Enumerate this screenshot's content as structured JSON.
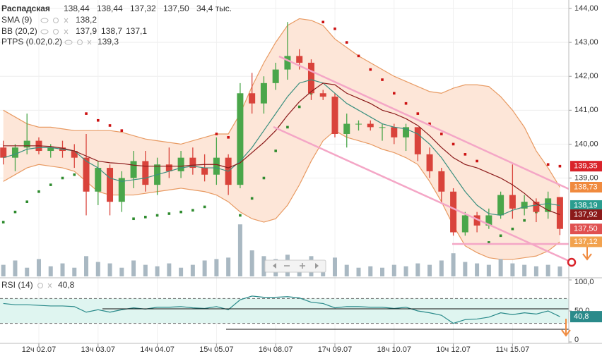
{
  "chart_data": {
    "type": "candlestick",
    "legend": {
      "symbol": "Распадская",
      "ohlc": [
        "138,44",
        "138,44",
        "137,32",
        "137,50"
      ],
      "volume": "34,4 тыс.",
      "indicators": [
        {
          "name": "SMA (9)",
          "values": [
            "138,2"
          ]
        },
        {
          "name": "BB (20,2)",
          "values": [
            "137,9",
            "138,7",
            "137,1"
          ]
        },
        {
          "name": "PTPS (0.02,0.2)",
          "values": [
            "139,3"
          ]
        }
      ]
    },
    "categories": [
      null,
      null,
      null,
      "12ч 02.07",
      null,
      null,
      null,
      null,
      "13ч 03.07",
      null,
      null,
      null,
      null,
      "14ч 04.07",
      null,
      null,
      null,
      null,
      "15ч 05.07",
      null,
      null,
      null,
      null,
      "16ч 08.07",
      null,
      null,
      null,
      null,
      "17ч 09.07",
      null,
      null,
      null,
      null,
      "18ч 10.07",
      null,
      null,
      null,
      null,
      "10ч 12.07",
      null,
      null,
      null,
      null,
      "11ч 15.07",
      null,
      null,
      null,
      null
    ],
    "open": [
      139.9,
      139.6,
      139.9,
      140.1,
      139.8,
      139.9,
      139.8,
      139.6,
      138.6,
      139.3,
      138.3,
      139.0,
      139.5,
      138.8,
      139.4,
      139.2,
      139.6,
      139.3,
      139.1,
      139.6,
      138.8,
      141.5,
      141.2,
      141.8,
      142.2,
      142.6,
      142.4,
      141.5,
      141.4,
      140.3,
      140.6,
      140.6,
      140.5,
      140.5,
      140.2,
      140.5,
      139.7,
      139.2,
      138.6,
      137.4,
      137.9,
      137.6,
      137.9,
      138.5,
      138.1,
      138.3,
      138.0,
      138.44
    ],
    "high": [
      140.1,
      140.0,
      140.9,
      140.2,
      140.0,
      140.1,
      140.0,
      140.3,
      139.5,
      139.4,
      139.2,
      139.8,
      139.8,
      139.6,
      139.9,
      139.8,
      139.9,
      139.7,
      140.2,
      139.7,
      141.8,
      142.1,
      142.0,
      142.4,
      143.6,
      142.8,
      142.5,
      141.6,
      141.5,
      140.9,
      140.7,
      140.7,
      140.6,
      140.6,
      140.6,
      140.5,
      139.9,
      139.3,
      138.7,
      138.0,
      138.0,
      138.1,
      138.6,
      139.4,
      138.5,
      138.4,
      138.6,
      138.44
    ],
    "low": [
      139.4,
      139.2,
      139.7,
      139.7,
      139.6,
      139.6,
      139.3,
      137.9,
      138.2,
      137.9,
      138.0,
      138.7,
      138.6,
      138.5,
      139.0,
      139.0,
      139.1,
      138.9,
      138.8,
      138.5,
      138.7,
      140.9,
      140.9,
      141.6,
      141.9,
      142.2,
      141.3,
      141.3,
      140.2,
      139.9,
      140.4,
      140.4,
      140.1,
      140.0,
      139.8,
      139.5,
      139.0,
      138.3,
      137.3,
      137.3,
      137.4,
      137.5,
      137.8,
      137.8,
      137.9,
      137.7,
      137.8,
      137.32
    ],
    "close": [
      139.6,
      139.9,
      140.1,
      139.8,
      139.9,
      139.8,
      139.6,
      138.6,
      139.3,
      138.3,
      139.0,
      139.5,
      138.8,
      139.4,
      139.2,
      139.6,
      139.3,
      139.1,
      139.6,
      138.8,
      141.5,
      141.2,
      141.8,
      142.2,
      142.6,
      142.4,
      141.5,
      141.4,
      140.3,
      140.6,
      140.6,
      140.5,
      140.5,
      140.2,
      140.5,
      139.7,
      139.2,
      138.6,
      137.4,
      137.9,
      137.6,
      137.9,
      138.5,
      138.1,
      138.3,
      138.0,
      138.4,
      137.5
    ],
    "up_color": "#4aa64a",
    "down_color": "#d9433b",
    "series": [
      {
        "name": "SMA (9)",
        "color": "#3a8f7f",
        "values": [
          139.6,
          139.7,
          139.85,
          139.9,
          139.9,
          139.85,
          139.8,
          139.5,
          139.3,
          139.0,
          138.9,
          138.95,
          139.0,
          139.1,
          139.2,
          139.3,
          139.35,
          139.3,
          139.3,
          139.2,
          139.5,
          139.9,
          140.4,
          140.9,
          141.4,
          141.8,
          141.9,
          141.8,
          141.5,
          141.2,
          141.0,
          140.8,
          140.6,
          140.5,
          140.45,
          140.3,
          140.0,
          139.6,
          139.1,
          138.6,
          138.2,
          137.95,
          137.9,
          138.05,
          138.15,
          138.2,
          138.25,
          138.19
        ]
      },
      {
        "name": "BB (20,2)",
        "color": "#8b1a1a",
        "values": [
          139.95,
          139.95,
          139.95,
          139.95,
          139.93,
          139.88,
          139.8,
          139.65,
          139.5,
          139.45,
          139.43,
          139.38,
          139.35,
          139.35,
          139.35,
          139.35,
          139.38,
          139.4,
          139.4,
          139.3,
          139.45,
          139.75,
          140.05,
          140.4,
          140.85,
          141.25,
          141.55,
          141.8,
          141.75,
          141.5,
          141.35,
          141.2,
          141.0,
          140.9,
          140.75,
          140.55,
          140.25,
          139.9,
          139.6,
          139.4,
          139.3,
          139.15,
          139.0,
          138.8,
          138.55,
          138.25,
          138.05,
          137.92
        ]
      }
    ],
    "band": {
      "color": "#e89a62",
      "fill": "#fde6d8",
      "upper": [
        141.0,
        140.8,
        140.6,
        140.5,
        140.5,
        140.45,
        140.4,
        140.4,
        140.4,
        140.4,
        140.35,
        140.25,
        140.15,
        140.1,
        140.05,
        140.0,
        140.1,
        140.2,
        140.3,
        140.3,
        140.9,
        141.7,
        142.4,
        143.0,
        143.5,
        143.7,
        143.65,
        143.5,
        143.1,
        142.85,
        142.6,
        142.4,
        142.2,
        142.0,
        141.85,
        141.7,
        141.55,
        141.5,
        141.65,
        141.75,
        141.75,
        141.7,
        141.4,
        141.0,
        140.5,
        139.8,
        139.3,
        138.73
      ],
      "lower": [
        138.9,
        139.1,
        139.3,
        139.4,
        139.35,
        139.3,
        139.2,
        138.9,
        138.6,
        138.5,
        138.5,
        138.5,
        138.55,
        138.6,
        138.65,
        138.7,
        138.65,
        138.6,
        138.5,
        138.3,
        138.0,
        137.8,
        137.7,
        137.8,
        138.2,
        138.8,
        139.5,
        140.1,
        140.4,
        140.2,
        140.1,
        140.0,
        139.85,
        139.75,
        139.6,
        139.4,
        138.9,
        138.3,
        137.6,
        137.0,
        136.8,
        136.65,
        136.6,
        136.6,
        136.65,
        136.7,
        136.85,
        137.12
      ]
    },
    "ptps": {
      "values": [
        137.7,
        138.0,
        138.3,
        138.6,
        138.8,
        139.0,
        139.1,
        140.9,
        140.7,
        140.55,
        140.4,
        137.8,
        137.85,
        137.9,
        137.95,
        138.0,
        138.05,
        138.15,
        140.3,
        140.2,
        137.9,
        138.4,
        139.0,
        139.8,
        140.5,
        141.1,
        141.5,
        143.6,
        143.4,
        143.0,
        142.6,
        142.2,
        141.9,
        141.5,
        141.2,
        140.9,
        140.6,
        140.3,
        140.0,
        139.7,
        139.5,
        137.1,
        137.3,
        137.5,
        137.75,
        138.0,
        139.4,
        139.35
      ],
      "colors": [
        "#2e8b2e",
        "#2e8b2e",
        "#2e8b2e",
        "#2e8b2e",
        "#2e8b2e",
        "#2e8b2e",
        "#2e8b2e",
        "#cc1111",
        "#cc1111",
        "#cc1111",
        "#cc1111",
        "#2e8b2e",
        "#2e8b2e",
        "#2e8b2e",
        "#2e8b2e",
        "#2e8b2e",
        "#2e8b2e",
        "#2e8b2e",
        "#cc1111",
        "#cc1111",
        "#2e8b2e",
        "#2e8b2e",
        "#2e8b2e",
        "#2e8b2e",
        "#2e8b2e",
        "#2e8b2e",
        "#2e8b2e",
        "#cc1111",
        "#cc1111",
        "#cc1111",
        "#cc1111",
        "#cc1111",
        "#cc1111",
        "#cc1111",
        "#cc1111",
        "#cc1111",
        "#cc1111",
        "#cc1111",
        "#cc1111",
        "#cc1111",
        "#cc1111",
        "#2e8b2e",
        "#2e8b2e",
        "#2e8b2e",
        "#2e8b2e",
        "#2e8b2e",
        "#cc1111",
        "#cc1111"
      ]
    },
    "ylim": [
      136.1,
      144.25
    ],
    "yticks": [
      {
        "value": 144,
        "label": "144,00"
      },
      {
        "value": 143,
        "label": "143,00"
      },
      {
        "value": 142,
        "label": "142,00"
      },
      {
        "value": 141,
        "label": "141,00"
      },
      {
        "value": 140,
        "label": "140,00"
      },
      {
        "value": 139,
        "label": "139,00"
      }
    ],
    "price_labels": [
      {
        "value": 139.35,
        "label": "139,35",
        "color": "#d9232a"
      },
      {
        "value": 138.73,
        "label": "138,73",
        "color": "#f08a3e"
      },
      {
        "value": 138.19,
        "label": "138,19",
        "color": "#2a9d8f"
      },
      {
        "value": 137.92,
        "label": "137,92",
        "color": "#8b1a1a"
      },
      {
        "value": 137.5,
        "label": "137,50",
        "color": "#e05050"
      },
      {
        "value": 137.12,
        "label": "137,12",
        "color": "#f2a24e"
      }
    ],
    "volume": {
      "color": "#a9b8c2",
      "ylim": [
        0,
        200
      ],
      "values": [
        40,
        55,
        30,
        60,
        35,
        45,
        30,
        70,
        50,
        45,
        30,
        55,
        40,
        35,
        45,
        30,
        40,
        55,
        60,
        65,
        180,
        90,
        70,
        60,
        75,
        40,
        70,
        35,
        65,
        40,
        30,
        35,
        30,
        40,
        35,
        45,
        40,
        55,
        80,
        50,
        45,
        40,
        60,
        45,
        40,
        35,
        40,
        34.4
      ]
    },
    "rsi": {
      "title": "RSI (14)",
      "color": "#2a8a8a",
      "fill": "#dff5f0",
      "ylim": [
        0,
        100
      ],
      "levels": [
        70,
        30
      ],
      "yticks": [
        {
          "value": 100,
          "label": "100,0"
        },
        {
          "value": 50,
          "label": "50,0"
        },
        {
          "value": 0,
          "label": "0"
        }
      ],
      "current": {
        "value": 40.8,
        "label": "40,8"
      },
      "values": [
        62,
        60,
        60,
        59,
        58,
        58,
        57,
        48,
        52,
        48,
        52,
        55,
        53,
        56,
        56,
        57,
        55,
        54,
        57,
        52,
        68,
        74,
        72,
        72,
        73,
        71,
        64,
        62,
        55,
        57,
        57,
        56,
        56,
        54,
        56,
        50,
        47,
        43,
        30,
        36,
        37,
        40,
        47,
        44,
        47,
        45,
        50,
        40.8
      ]
    },
    "grid": true
  }
}
